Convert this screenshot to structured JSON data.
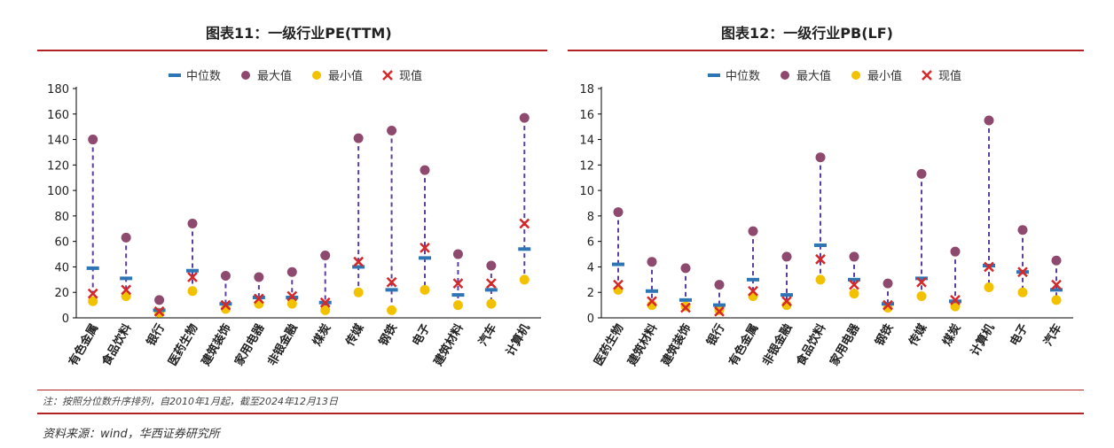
{
  "colors": {
    "median": "#2E75B6",
    "max": "#8E4A6E",
    "min": "#F2C200",
    "current": "#D62828",
    "whisker": "#5B3FA0",
    "accent_line": "#B22222"
  },
  "note": "注：按照分位数升序排列，自2010年1月起，截至2024年12月13日",
  "source": "资料来源：wind，华西证券研究所",
  "chart_data": [
    {
      "type": "scatter",
      "title": "图表11：一级行业PE(TTM)",
      "legend": [
        "中位数",
        "最大值",
        "最小值",
        "现值"
      ],
      "yticks": [
        "0",
        "20",
        "40",
        "60",
        "80",
        "100",
        "120",
        "140",
        "160",
        "180"
      ],
      "ylim": [
        0,
        180
      ],
      "categories": [
        "有色金属",
        "食品饮料",
        "银行",
        "医药生物",
        "建筑装饰",
        "家用电器",
        "非银金融",
        "煤炭",
        "传媒",
        "钢铁",
        "电子",
        "建筑材料",
        "汽车",
        "计算机"
      ],
      "series": [
        {
          "name": "中位数",
          "values": [
            39,
            31,
            6,
            37,
            11,
            16,
            16,
            12,
            40,
            22,
            47,
            18,
            22,
            54
          ]
        },
        {
          "name": "最大值",
          "values": [
            140,
            63,
            14,
            74,
            33,
            32,
            36,
            49,
            141,
            147,
            116,
            50,
            41,
            157
          ]
        },
        {
          "name": "最小值",
          "values": [
            13,
            17,
            4,
            21,
            7,
            11,
            11,
            6,
            20,
            6,
            22,
            10,
            11,
            30
          ]
        },
        {
          "name": "现值",
          "values": [
            19,
            22,
            5,
            32,
            10,
            15,
            17,
            12,
            44,
            28,
            55,
            27,
            27,
            74
          ]
        }
      ]
    },
    {
      "type": "scatter",
      "title": "图表12：一级行业PB(LF)",
      "legend": [
        "中位数",
        "最大值",
        "最小值",
        "现值"
      ],
      "yticks": [
        "0",
        "2",
        "4",
        "6",
        "8",
        "10",
        "12",
        "14",
        "16",
        "18"
      ],
      "ylim": [
        0,
        18
      ],
      "categories": [
        "医药生物",
        "建筑材料",
        "建筑装饰",
        "银行",
        "有色金属",
        "非银金融",
        "食品饮料",
        "家用电器",
        "钢铁",
        "传媒",
        "煤炭",
        "计算机",
        "电子",
        "汽车"
      ],
      "series": [
        {
          "name": "中位数",
          "values": [
            4.2,
            2.1,
            1.4,
            1.0,
            3.0,
            1.8,
            5.7,
            3.0,
            1.1,
            3.1,
            1.3,
            4.1,
            3.6,
            2.2
          ]
        },
        {
          "name": "最大值",
          "values": [
            8.3,
            4.4,
            3.9,
            2.6,
            6.8,
            4.8,
            12.6,
            4.8,
            2.7,
            11.3,
            5.2,
            15.5,
            6.9,
            4.5
          ]
        },
        {
          "name": "最小值",
          "values": [
            2.2,
            1.0,
            0.9,
            0.6,
            1.7,
            1.0,
            3.0,
            1.9,
            0.8,
            1.7,
            0.9,
            2.4,
            2.0,
            1.4
          ]
        },
        {
          "name": "现值",
          "values": [
            2.6,
            1.3,
            0.8,
            0.5,
            2.1,
            1.3,
            4.6,
            2.6,
            1.0,
            2.8,
            1.4,
            4.0,
            3.6,
            2.6
          ]
        }
      ]
    }
  ]
}
